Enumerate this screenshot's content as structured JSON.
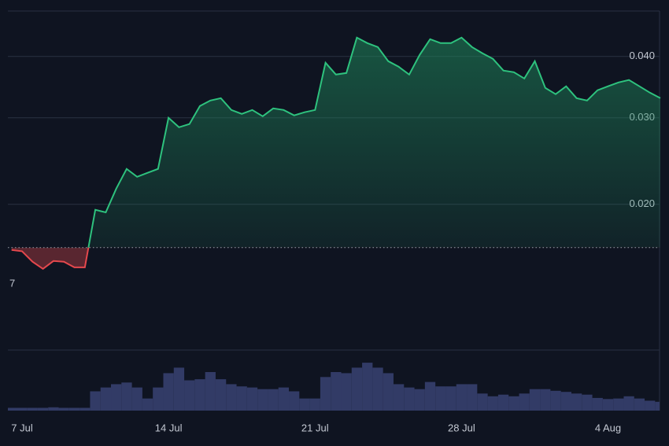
{
  "chart_data": {
    "type": "area",
    "categories": [
      null,
      "7 Jul",
      null,
      null,
      null,
      null,
      null,
      null,
      null,
      null,
      null,
      null,
      null,
      null,
      null,
      "14 Jul",
      null,
      null,
      null,
      null,
      null,
      null,
      null,
      null,
      null,
      null,
      null,
      null,
      null,
      "21 Jul",
      null,
      null,
      null,
      null,
      null,
      null,
      null,
      null,
      null,
      null,
      null,
      null,
      null,
      "28 Jul",
      null,
      null,
      null,
      null,
      null,
      null,
      null,
      null,
      null,
      null,
      null,
      null,
      null,
      "4 Aug",
      null,
      null,
      null,
      null,
      null
    ],
    "values": [
      0.01615,
      0.01605,
      0.01528,
      0.01478,
      0.01533,
      0.01528,
      0.01488,
      0.01488,
      0.01949,
      0.01926,
      0.02153,
      0.02361,
      0.02275,
      0.02318,
      0.02361,
      0.03,
      0.0287,
      0.02914,
      0.0317,
      0.03254,
      0.0329,
      0.03113,
      0.03056,
      0.03113,
      0.03022,
      0.03136,
      0.03113,
      0.03034,
      0.03079,
      0.03113,
      0.03884,
      0.03675,
      0.03702,
      0.0437,
      0.04258,
      0.0418,
      0.03912,
      0.03811,
      0.03675,
      0.0403,
      0.04338,
      0.04258,
      0.04258,
      0.0437,
      0.0418,
      0.0406,
      0.03956,
      0.03744,
      0.03716,
      0.03608,
      0.03912,
      0.03452,
      0.03352,
      0.03478,
      0.0329,
      0.03254,
      0.03414,
      0.03478,
      0.03542,
      0.03582,
      0.03478,
      0.03376,
      0.0329
    ],
    "baseline": 0.01633,
    "up_color": "#2ec27e",
    "down_color": "#e5484d",
    "ylim": [
      0.0101,
      0.0495
    ],
    "yscale": "log",
    "yticks": [
      {
        "value": 0.02,
        "label": "0.020"
      },
      {
        "value": 0.03,
        "label": "0.030"
      },
      {
        "value": 0.04,
        "label": "0.040"
      }
    ],
    "grid": true,
    "partial_label": "7",
    "volume": {
      "color": "#323b66",
      "ylim": [
        0,
        100
      ],
      "values": [
        5,
        5,
        5,
        5,
        6,
        5,
        5,
        5,
        35,
        42,
        48,
        51,
        42,
        22,
        42,
        68,
        78,
        55,
        57,
        70,
        57,
        48,
        44,
        42,
        39,
        39,
        42,
        35,
        22,
        22,
        61,
        70,
        68,
        78,
        87,
        78,
        68,
        48,
        42,
        39,
        52,
        44,
        44,
        48,
        48,
        31,
        26,
        29,
        26,
        31,
        39,
        39,
        36,
        34,
        31,
        29,
        23,
        21,
        22,
        26,
        22,
        18,
        16
      ]
    }
  }
}
